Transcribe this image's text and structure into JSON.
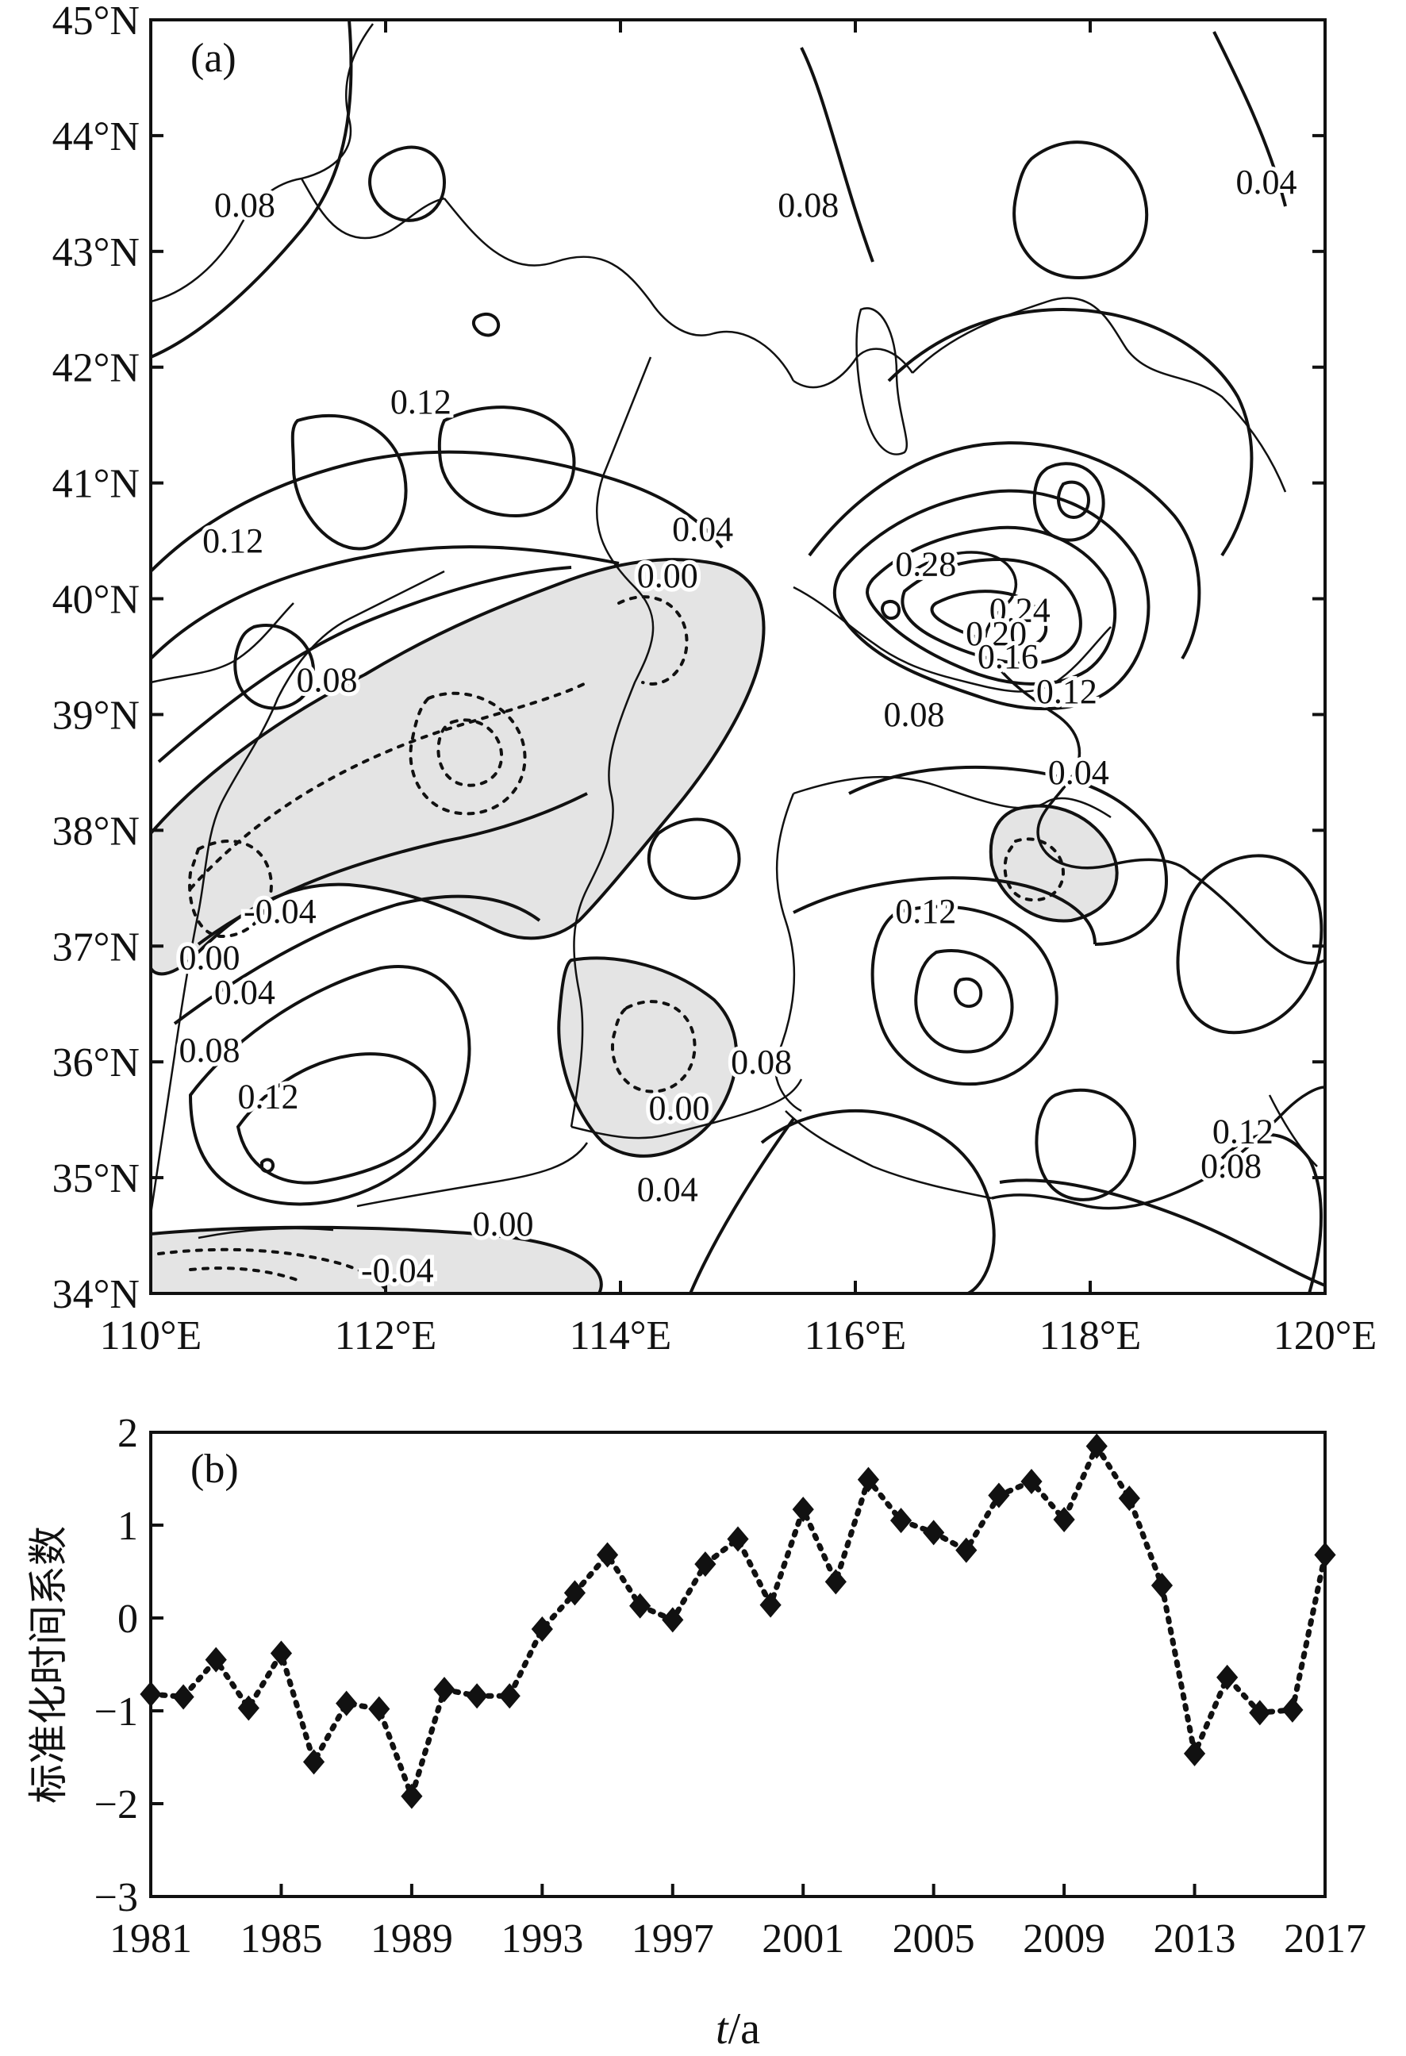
{
  "chart_data": [
    {
      "panel_tag": "(a)",
      "type": "contour",
      "xlim": [
        110,
        120
      ],
      "ylim": [
        34,
        45
      ],
      "x_ticks": [
        {
          "value": 110,
          "label": "110°E"
        },
        {
          "value": 112,
          "label": "112°E"
        },
        {
          "value": 114,
          "label": "114°E"
        },
        {
          "value": 116,
          "label": "116°E"
        },
        {
          "value": 118,
          "label": "118°E"
        },
        {
          "value": 120,
          "label": "120°E"
        }
      ],
      "y_ticks": [
        {
          "value": 34,
          "label": "34°N"
        },
        {
          "value": 35,
          "label": "35°N"
        },
        {
          "value": 36,
          "label": "36°N"
        },
        {
          "value": 37,
          "label": "37°N"
        },
        {
          "value": 38,
          "label": "38°N"
        },
        {
          "value": 39,
          "label": "39°N"
        },
        {
          "value": 40,
          "label": "40°N"
        },
        {
          "value": 41,
          "label": "41°N"
        },
        {
          "value": 42,
          "label": "42°N"
        },
        {
          "value": 43,
          "label": "43°N"
        },
        {
          "value": 44,
          "label": "44°N"
        },
        {
          "value": 45,
          "label": "45°N"
        }
      ],
      "contour_labels": [
        {
          "text": "0.08",
          "lon": 110.8,
          "lat": 43.3
        },
        {
          "text": "0.08",
          "lon": 115.6,
          "lat": 43.3
        },
        {
          "text": "0.04",
          "lon": 119.5,
          "lat": 43.5
        },
        {
          "text": "0.12",
          "lon": 112.3,
          "lat": 41.6
        },
        {
          "text": "0.12",
          "lon": 110.7,
          "lat": 40.4
        },
        {
          "text": "0.08",
          "lon": 111.5,
          "lat": 39.2
        },
        {
          "text": "0.04",
          "lon": 114.7,
          "lat": 40.5
        },
        {
          "text": "0.00",
          "lon": 114.4,
          "lat": 40.1
        },
        {
          "text": "0.28",
          "lon": 116.6,
          "lat": 40.2
        },
        {
          "text": "0.24",
          "lon": 117.4,
          "lat": 39.8
        },
        {
          "text": "0.20",
          "lon": 117.2,
          "lat": 39.6
        },
        {
          "text": "0.16",
          "lon": 117.3,
          "lat": 39.4
        },
        {
          "text": "0.12",
          "lon": 117.8,
          "lat": 39.1
        },
        {
          "text": "0.08",
          "lon": 116.5,
          "lat": 38.9
        },
        {
          "text": "0.04",
          "lon": 117.9,
          "lat": 38.4
        },
        {
          "text": "-0.04",
          "lon": 111.1,
          "lat": 37.2
        },
        {
          "text": "0.00",
          "lon": 110.5,
          "lat": 36.8
        },
        {
          "text": "0.04",
          "lon": 110.8,
          "lat": 36.5
        },
        {
          "text": "0.08",
          "lon": 110.5,
          "lat": 36.0
        },
        {
          "text": "0.12",
          "lon": 111.0,
          "lat": 35.6
        },
        {
          "text": "0.12",
          "lon": 116.6,
          "lat": 37.2
        },
        {
          "text": "0.08",
          "lon": 115.2,
          "lat": 35.9
        },
        {
          "text": "0.00",
          "lon": 114.5,
          "lat": 35.5
        },
        {
          "text": "0.04",
          "lon": 114.4,
          "lat": 34.8
        },
        {
          "text": "0.00",
          "lon": 113.0,
          "lat": 34.5
        },
        {
          "text": "-0.04",
          "lon": 112.1,
          "lat": 34.1
        },
        {
          "text": "0.12",
          "lon": 119.3,
          "lat": 35.3
        },
        {
          "text": "0.08",
          "lon": 119.2,
          "lat": 35.0
        }
      ]
    },
    {
      "panel_tag": "(b)",
      "type": "line",
      "line_style": "dotted",
      "marker": "diamond",
      "xlabel_italic": "t",
      "xlabel_rest": "/a",
      "ylabel": "标准化时间系数",
      "xlim": [
        1981,
        2017
      ],
      "ylim": [
        -3,
        2
      ],
      "x_ticks": [
        1981,
        1985,
        1989,
        1993,
        1997,
        2001,
        2005,
        2009,
        2013,
        2017
      ],
      "y_ticks": [
        {
          "value": 2,
          "label": "2"
        },
        {
          "value": 1,
          "label": "1"
        },
        {
          "value": 0,
          "label": "0"
        },
        {
          "value": -1,
          "label": "−1"
        },
        {
          "value": -2,
          "label": "−2"
        },
        {
          "value": -3,
          "label": "−3"
        }
      ],
      "x": [
        1981,
        1982,
        1983,
        1984,
        1985,
        1986,
        1987,
        1988,
        1989,
        1990,
        1991,
        1992,
        1993,
        1994,
        1995,
        1996,
        1997,
        1998,
        1999,
        2000,
        2001,
        2002,
        2003,
        2004,
        2005,
        2006,
        2007,
        2008,
        2009,
        2010,
        2011,
        2012,
        2013,
        2014,
        2015,
        2016,
        2017
      ],
      "values": [
        -0.82,
        -0.85,
        -0.45,
        -0.97,
        -0.38,
        -1.55,
        -0.92,
        -0.98,
        -1.92,
        -0.77,
        -0.84,
        -0.84,
        -0.12,
        0.27,
        0.68,
        0.13,
        -0.02,
        0.58,
        0.85,
        0.14,
        1.17,
        0.39,
        1.49,
        1.05,
        0.92,
        0.73,
        1.32,
        1.47,
        1.06,
        1.85,
        1.29,
        0.35,
        -1.46,
        -0.64,
        -1.02,
        -0.99,
        0.68
      ]
    }
  ]
}
